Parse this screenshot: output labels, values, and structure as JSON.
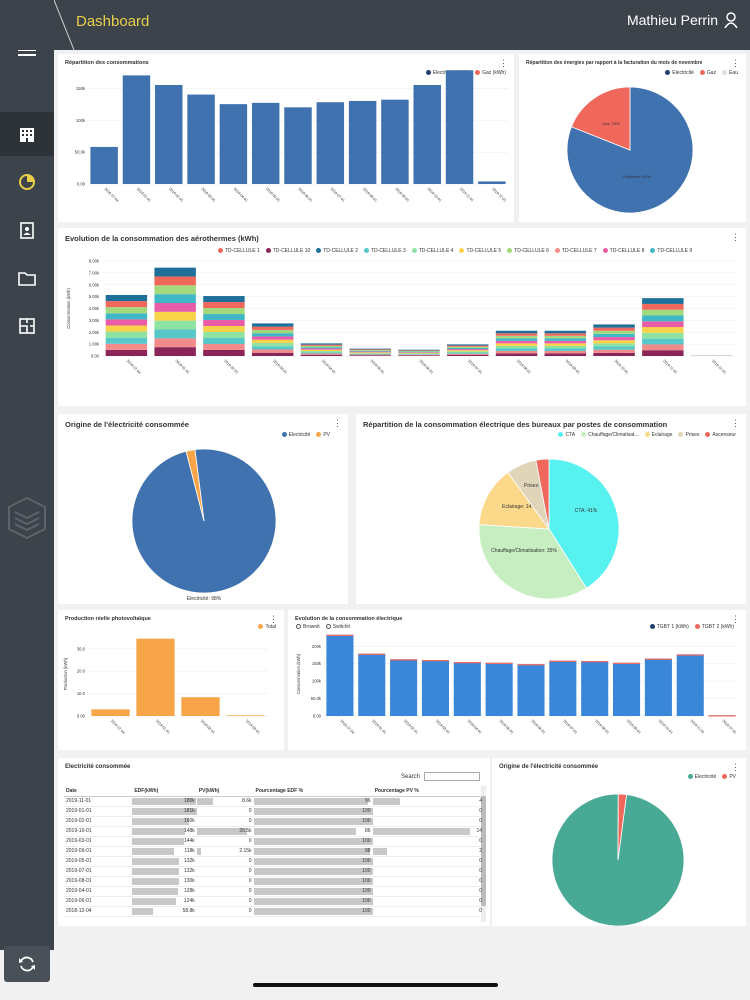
{
  "header": {
    "title": "Dashboard",
    "user_name": "Mathieu Perrin"
  },
  "sidebar": {
    "items": [
      {
        "icon": "hamburger-menu-icon"
      },
      {
        "icon": "building-icon"
      },
      {
        "icon": "pie-chart-icon"
      },
      {
        "icon": "contacts-icon"
      },
      {
        "icon": "folder-icon"
      },
      {
        "icon": "floorplan-icon"
      },
      {
        "icon": "cube-stack-icon"
      }
    ]
  },
  "colors": {
    "accent": "#e8cf4a",
    "blue": "#3f72ae",
    "red": "#f0675c",
    "orange": "#f8a54a",
    "cyan": "#57f2f0",
    "teal": "#48a994"
  },
  "charts": [
    {
      "id": "c1",
      "title": "Répartition des consommations",
      "legend": [
        "Electricité (kWh)",
        "Gaz (kWh)"
      ],
      "chart_data": {
        "type": "bar",
        "categories": [
          "2018-12-04",
          "2019-01-01",
          "2019-02-01",
          "2019-03-01",
          "2019-04-01",
          "2019-05-01",
          "2019-06-01",
          "2019-07-01",
          "2019-08-01",
          "2019-09-01",
          "2019-10-01",
          "2019-11-01",
          "2019-12-01"
        ],
        "series": [
          {
            "name": "Electricité (kWh)",
            "values": [
              58,
              170,
              155,
              140,
              125,
              127,
              120,
              128,
              130,
              132,
              155,
              178,
              4
            ]
          }
        ],
        "yticks": [
          "0.00",
          "50.0k",
          "100k",
          "150k"
        ],
        "ylim": [
          0,
          180
        ]
      }
    },
    {
      "id": "c2",
      "title": "Répartition des énergies par rapport à la facturation du mois de novembre",
      "legend": [
        "Electricité",
        "Gaz",
        "Eau"
      ],
      "chart_data": {
        "type": "pie",
        "slices": [
          {
            "label": "Electricité: 81%",
            "value": 81
          },
          {
            "label": "Gaz: 19%",
            "value": 19
          }
        ]
      }
    },
    {
      "id": "c3",
      "title": "Evolution de la consommation des aérothermes (kWh)",
      "legend": [
        "TD-CELLULE 1",
        "TD-CELLULE 10",
        "TD-CELLULE 2",
        "TD-CELLULE 3",
        "TD-CELLULE 4",
        "TD-CELLULE 5",
        "TD-CELLULE 6",
        "TD-CELLULE 7",
        "TD-CELLULE 8",
        "TD-CELLULE 9"
      ],
      "chart_data": {
        "type": "bar",
        "stacked": true,
        "ylabel": "Consommation (kWh)",
        "yticks": [
          "0.00",
          "1.00k",
          "2.00k",
          "3.00k",
          "4.00k",
          "5.00k",
          "6.00k",
          "7.00k",
          "8.00k"
        ],
        "categories": [
          "2018-12-04",
          "2019-01-01",
          "2019-02-01",
          "2019-03-01",
          "2019-04-01",
          "2019-05-01",
          "2019-06-01",
          "2019-07-01",
          "2019-08-01",
          "2019-09-01",
          "2019-10-01",
          "2019-11-01",
          "2019-12-01"
        ],
        "totals": [
          5800,
          8400,
          5700,
          3100,
          1200,
          700,
          600,
          1100,
          2400,
          2400,
          3000,
          5500,
          50
        ],
        "ylim": [
          0,
          8500
        ]
      }
    },
    {
      "id": "c4",
      "title": "Origine de l'électricité consommée",
      "legend": [
        "Electricité",
        "PV"
      ],
      "chart_data": {
        "type": "pie",
        "slices": [
          {
            "label": "Electricité: 98%",
            "value": 98
          },
          {
            "label": "PV",
            "value": 2
          }
        ]
      }
    },
    {
      "id": "c5",
      "title": "Répartition de la consommation électrique des bureaux par postes de consommation",
      "legend": [
        "CTA",
        "Chauffage/Climatisat...",
        "Eclairage",
        "Prises",
        "Ascenseur"
      ],
      "chart_data": {
        "type": "pie",
        "slices": [
          {
            "label": "CTA: 41%",
            "value": 41
          },
          {
            "label": "Chauffage/Climatisation: 35%",
            "value": 35
          },
          {
            "label": "Eclairage: 14%",
            "value": 14
          },
          {
            "label": "Prises: 7%",
            "value": 7
          },
          {
            "label": "Ascenseur",
            "value": 3
          }
        ]
      }
    },
    {
      "id": "c6",
      "title": "Production réelle photovoltaïque",
      "legend": [
        "Total"
      ],
      "chart_data": {
        "type": "bar",
        "ylabel": "Production (kWh)",
        "categories": [
          "2018-12-04",
          "2019-01-01",
          "2019-02-01",
          "2019-03-01"
        ],
        "values": [
          3,
          35,
          8.5,
          0.3
        ],
        "yticks": [
          "0.00",
          "10.0",
          "20.0",
          "30.0"
        ],
        "ylim": [
          0,
          38
        ]
      }
    },
    {
      "id": "c7",
      "title": "Evolution de la consommation électrique",
      "legend_left": [
        "Brownit",
        "Switchit"
      ],
      "legend": [
        "TGBT 1 (kWh)",
        "TGBT 2 (kWh)"
      ],
      "chart_data": {
        "type": "bar",
        "ylabel": "Consommation (kWh)",
        "categories": [
          "2018-12-04",
          "2019-01-01",
          "2019-02-01",
          "2019-03-01",
          "2019-04-01",
          "2019-05-01",
          "2019-06-01",
          "2019-07-01",
          "2019-08-01",
          "2019-09-01",
          "2019-10-01",
          "2019-11-01",
          "2019-12-01"
        ],
        "values": [
          232,
          178,
          162,
          160,
          154,
          152,
          148,
          158,
          157,
          152,
          164,
          176,
          2
        ],
        "yticks": [
          "0.00",
          "50.0k",
          "100k",
          "150k",
          "200k"
        ],
        "ylim": [
          0,
          240
        ]
      }
    },
    {
      "id": "c9",
      "title": "Origine de l'électricité consommée",
      "legend": [
        "Electricité",
        "PV"
      ],
      "chart_data": {
        "type": "pie",
        "slices": [
          {
            "label": "Electricité: 98%",
            "value": 98
          },
          {
            "label": "PV",
            "value": 2
          }
        ]
      }
    }
  ],
  "table": {
    "title": "Electricité consommée",
    "search_label": "Search",
    "search_placeholder": "",
    "columns": [
      "Date",
      "EDF(kWh)",
      "PV(kWh)",
      "Pourcentage EDF %",
      "Pourcentage PV %"
    ],
    "rows": [
      [
        "2019-11-01",
        "180k",
        "8.6k",
        "96",
        "4"
      ],
      [
        "2019-01-01",
        "181k",
        "0",
        "100",
        "0"
      ],
      [
        "2019-02-01",
        "160k",
        "0",
        "100",
        "0"
      ],
      [
        "2019-10-01",
        "148k",
        "26.5k",
        "86",
        "14"
      ],
      [
        "2019-03-01",
        "144k",
        "0",
        "100",
        "0"
      ],
      [
        "2019-09-01",
        "118k",
        "2.15k",
        "98",
        "2"
      ],
      [
        "2019-05-01",
        "132k",
        "0",
        "100",
        "0"
      ],
      [
        "2019-07-01",
        "132k",
        "0",
        "100",
        "0"
      ],
      [
        "2019-08-01",
        "130k",
        "0",
        "100",
        "0"
      ],
      [
        "2019-04-01",
        "128k",
        "0",
        "100",
        "0"
      ],
      [
        "2019-06-01",
        "124k",
        "0",
        "100",
        "0"
      ],
      [
        "2018-12-04",
        "58.8k",
        "0",
        "100",
        "0"
      ]
    ]
  }
}
